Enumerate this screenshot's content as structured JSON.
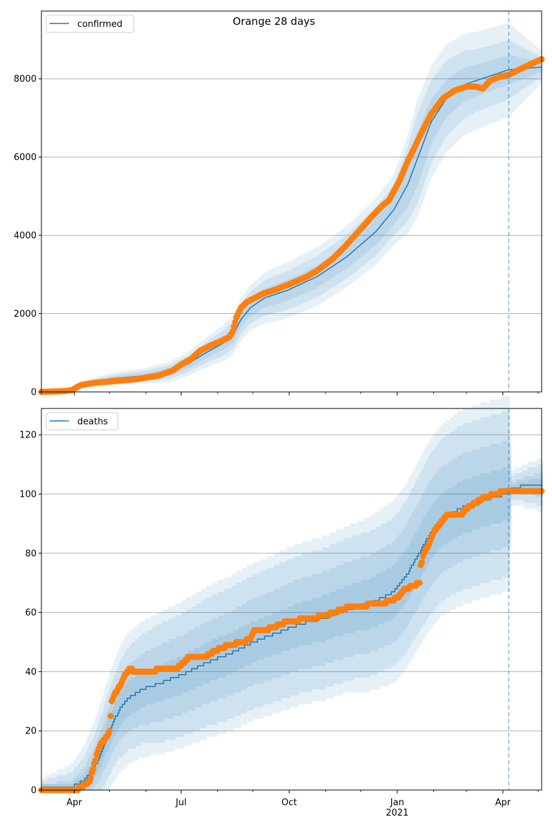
{
  "figure": {
    "title": "Orange 28 days",
    "colors": {
      "model": "#1f77b4",
      "observed": "#ff7f0e",
      "band": "#1f77b4",
      "grid": "#b0b0b0",
      "forecast_line": "#1f77b4"
    }
  },
  "chart_data": [
    {
      "type": "line",
      "panel": "top",
      "title": "Orange 28 days",
      "xlabel": "",
      "ylabel": "",
      "legend": [
        "confirmed"
      ],
      "legend_placement": "top-left",
      "grid": "y",
      "x_start_date": "2020-03-04",
      "x_range_days": [
        0,
        426
      ],
      "ylim": [
        0,
        9730
      ],
      "yticks": [
        0,
        2000,
        4000,
        6000,
        8000
      ],
      "forecast_start_day": 398,
      "x_ticks_major": [
        {
          "day": 28,
          "label": ""
        },
        {
          "day": 119,
          "label": ""
        },
        {
          "day": 211,
          "label": ""
        },
        {
          "day": 303,
          "label": ""
        },
        {
          "day": 393,
          "label": ""
        }
      ],
      "x_ticks_minor_days": [
        0,
        58,
        89,
        150,
        180,
        242,
        272,
        334,
        362,
        423
      ],
      "model_median": [
        [
          0,
          0
        ],
        [
          20,
          10
        ],
        [
          28,
          40
        ],
        [
          40,
          230
        ],
        [
          60,
          340
        ],
        [
          90,
          420
        ],
        [
          110,
          520
        ],
        [
          125,
          720
        ],
        [
          140,
          1000
        ],
        [
          155,
          1250
        ],
        [
          163,
          1450
        ],
        [
          170,
          1850
        ],
        [
          178,
          2150
        ],
        [
          190,
          2400
        ],
        [
          210,
          2600
        ],
        [
          235,
          2950
        ],
        [
          260,
          3450
        ],
        [
          285,
          4100
        ],
        [
          300,
          4650
        ],
        [
          312,
          5300
        ],
        [
          322,
          6100
        ],
        [
          332,
          6900
        ],
        [
          345,
          7500
        ],
        [
          360,
          7850
        ],
        [
          380,
          8050
        ],
        [
          398,
          8230
        ],
        [
          426,
          8300
        ]
      ],
      "band_halfwidths": [
        [
          [
            0,
            0
          ],
          [
            40,
            30
          ],
          [
            90,
            70
          ],
          [
            130,
            120
          ],
          [
            170,
            200
          ],
          [
            200,
            260
          ],
          [
            260,
            300
          ],
          [
            300,
            380
          ],
          [
            320,
            700
          ],
          [
            340,
            500
          ],
          [
            370,
            400
          ],
          [
            398,
            380
          ],
          [
            426,
            120
          ]
        ],
        [
          [
            0,
            0
          ],
          [
            40,
            60
          ],
          [
            90,
            130
          ],
          [
            130,
            220
          ],
          [
            170,
            380
          ],
          [
            200,
            480
          ],
          [
            260,
            560
          ],
          [
            300,
            650
          ],
          [
            320,
            1150
          ],
          [
            340,
            1000
          ],
          [
            370,
            800
          ],
          [
            398,
            750
          ],
          [
            426,
            250
          ]
        ],
        [
          [
            0,
            0
          ],
          [
            40,
            100
          ],
          [
            90,
            200
          ],
          [
            130,
            330
          ],
          [
            170,
            540
          ],
          [
            200,
            700
          ],
          [
            260,
            780
          ],
          [
            300,
            900
          ],
          [
            320,
            1500
          ],
          [
            340,
            1400
          ],
          [
            370,
            1250
          ],
          [
            398,
            1200
          ],
          [
            426,
            420
          ]
        ]
      ],
      "observed": [
        [
          0,
          0
        ],
        [
          20,
          20
        ],
        [
          26,
          50
        ],
        [
          30,
          120
        ],
        [
          34,
          180
        ],
        [
          45,
          230
        ],
        [
          60,
          270
        ],
        [
          82,
          330
        ],
        [
          100,
          420
        ],
        [
          112,
          550
        ],
        [
          119,
          700
        ],
        [
          128,
          850
        ],
        [
          135,
          1050
        ],
        [
          145,
          1200
        ],
        [
          153,
          1300
        ],
        [
          160,
          1400
        ],
        [
          163,
          1550
        ],
        [
          166,
          1900
        ],
        [
          170,
          2150
        ],
        [
          175,
          2300
        ],
        [
          188,
          2500
        ],
        [
          200,
          2620
        ],
        [
          211,
          2750
        ],
        [
          225,
          2930
        ],
        [
          235,
          3100
        ],
        [
          248,
          3400
        ],
        [
          258,
          3700
        ],
        [
          270,
          4100
        ],
        [
          282,
          4500
        ],
        [
          290,
          4750
        ],
        [
          296,
          4900
        ],
        [
          305,
          5400
        ],
        [
          312,
          5900
        ],
        [
          317,
          6200
        ],
        [
          325,
          6700
        ],
        [
          332,
          7100
        ],
        [
          342,
          7500
        ],
        [
          352,
          7700
        ],
        [
          362,
          7800
        ],
        [
          370,
          7800
        ],
        [
          376,
          7750
        ],
        [
          382,
          7950
        ],
        [
          390,
          8050
        ],
        [
          398,
          8100
        ],
        [
          410,
          8280
        ],
        [
          420,
          8420
        ],
        [
          426,
          8500
        ]
      ]
    },
    {
      "type": "line",
      "panel": "bottom",
      "title": "",
      "xlabel": "",
      "ylabel": "",
      "legend": [
        "deaths"
      ],
      "legend_placement": "top-left",
      "grid": "y",
      "x_start_date": "2020-03-04",
      "x_range_days": [
        0,
        426
      ],
      "ylim": [
        0,
        128.9
      ],
      "yticks": [
        0,
        20,
        40,
        60,
        80,
        100,
        120
      ],
      "forecast_start_day": 398,
      "x_ticks_major": [
        {
          "day": 28,
          "label": "Apr"
        },
        {
          "day": 119,
          "label": "Jul"
        },
        {
          "day": 211,
          "label": "Oct"
        },
        {
          "day": 303,
          "label": "Jan\n2021"
        },
        {
          "day": 393,
          "label": "Apr"
        }
      ],
      "x_ticks_minor_days": [
        0,
        58,
        89,
        150,
        180,
        242,
        272,
        334,
        362,
        423
      ],
      "model_median": [
        [
          0,
          1
        ],
        [
          26,
          1
        ],
        [
          30,
          2
        ],
        [
          36,
          3
        ],
        [
          42,
          6
        ],
        [
          48,
          10
        ],
        [
          54,
          16
        ],
        [
          60,
          22
        ],
        [
          66,
          27
        ],
        [
          74,
          31
        ],
        [
          85,
          34
        ],
        [
          100,
          36
        ],
        [
          120,
          39
        ],
        [
          140,
          43
        ],
        [
          160,
          46
        ],
        [
          180,
          50
        ],
        [
          200,
          53
        ],
        [
          220,
          56
        ],
        [
          240,
          58
        ],
        [
          260,
          61
        ],
        [
          280,
          63
        ],
        [
          300,
          67
        ],
        [
          310,
          72
        ],
        [
          320,
          79
        ],
        [
          330,
          86
        ],
        [
          340,
          91
        ],
        [
          355,
          95
        ],
        [
          370,
          97
        ],
        [
          385,
          99
        ],
        [
          398,
          100
        ],
        [
          400,
          102
        ],
        [
          415,
          103
        ],
        [
          426,
          103
        ]
      ],
      "band_halfwidths": [
        [
          [
            0,
            0.5
          ],
          [
            26,
            1
          ],
          [
            50,
            4
          ],
          [
            70,
            6
          ],
          [
            100,
            6
          ],
          [
            150,
            7
          ],
          [
            200,
            7
          ],
          [
            260,
            8
          ],
          [
            300,
            9
          ],
          [
            330,
            9
          ],
          [
            360,
            9
          ],
          [
            398,
            9
          ],
          [
            400,
            1
          ],
          [
            426,
            2
          ]
        ],
        [
          [
            0,
            1
          ],
          [
            26,
            2
          ],
          [
            50,
            8
          ],
          [
            70,
            11
          ],
          [
            100,
            13
          ],
          [
            150,
            14
          ],
          [
            200,
            15
          ],
          [
            260,
            16
          ],
          [
            300,
            17
          ],
          [
            330,
            18
          ],
          [
            360,
            18
          ],
          [
            398,
            18
          ],
          [
            400,
            2
          ],
          [
            426,
            4
          ]
        ],
        [
          [
            0,
            2
          ],
          [
            26,
            5
          ],
          [
            50,
            13
          ],
          [
            70,
            17
          ],
          [
            100,
            20
          ],
          [
            150,
            22
          ],
          [
            200,
            23
          ],
          [
            260,
            24
          ],
          [
            300,
            25
          ],
          [
            330,
            27
          ],
          [
            360,
            28
          ],
          [
            398,
            28
          ],
          [
            400,
            4
          ],
          [
            426,
            7
          ]
        ],
        [
          [
            0,
            3
          ],
          [
            26,
            8
          ],
          [
            50,
            18
          ],
          [
            70,
            22
          ],
          [
            100,
            24
          ],
          [
            150,
            26
          ],
          [
            200,
            27
          ],
          [
            260,
            28
          ],
          [
            300,
            31
          ],
          [
            330,
            32
          ],
          [
            360,
            33
          ],
          [
            398,
            33
          ],
          [
            400,
            6
          ],
          [
            426,
            9
          ]
        ]
      ],
      "observed": [
        [
          0,
          0
        ],
        [
          30,
          0
        ],
        [
          34,
          1
        ],
        [
          38,
          2
        ],
        [
          41,
          3
        ],
        [
          44,
          7
        ],
        [
          46,
          10
        ],
        [
          48,
          13
        ],
        [
          50,
          15
        ],
        [
          53,
          17
        ],
        [
          56,
          18
        ],
        [
          58,
          20
        ],
        [
          60,
          30
        ],
        [
          62,
          32
        ],
        [
          65,
          34
        ],
        [
          68,
          36
        ],
        [
          71,
          39
        ],
        [
          74,
          40
        ],
        [
          75,
          41
        ],
        [
          80,
          40
        ],
        [
          95,
          40
        ],
        [
          100,
          41
        ],
        [
          115,
          41
        ],
        [
          118,
          42
        ],
        [
          122,
          43
        ],
        [
          125,
          45
        ],
        [
          140,
          45
        ],
        [
          148,
          47
        ],
        [
          160,
          49
        ],
        [
          172,
          50
        ],
        [
          178,
          51
        ],
        [
          181,
          54
        ],
        [
          190,
          54
        ],
        [
          198,
          55
        ],
        [
          210,
          57
        ],
        [
          230,
          58
        ],
        [
          242,
          59
        ],
        [
          250,
          60
        ],
        [
          255,
          61
        ],
        [
          265,
          62
        ],
        [
          290,
          63
        ],
        [
          298,
          64
        ],
        [
          304,
          65
        ],
        [
          310,
          68
        ],
        [
          318,
          69
        ],
        [
          322,
          70
        ],
        [
          323,
          76
        ],
        [
          326,
          80
        ],
        [
          330,
          83
        ],
        [
          334,
          87
        ],
        [
          340,
          90
        ],
        [
          346,
          93
        ],
        [
          358,
          93
        ],
        [
          362,
          95
        ],
        [
          370,
          97
        ],
        [
          378,
          99
        ],
        [
          388,
          100
        ],
        [
          394,
          101
        ],
        [
          426,
          101
        ]
      ]
    }
  ]
}
